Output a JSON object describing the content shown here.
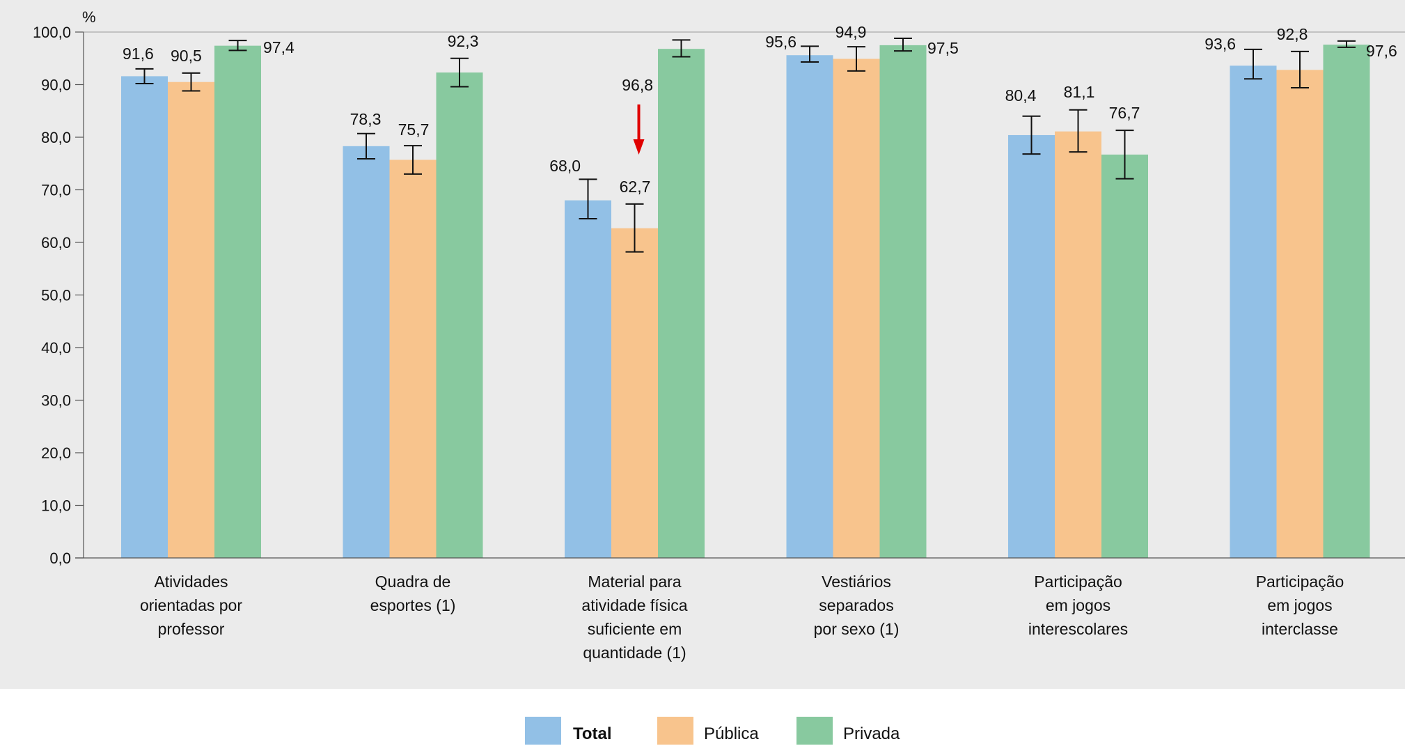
{
  "chart_data": {
    "type": "bar",
    "ylabel": "%",
    "ylim": [
      0,
      100
    ],
    "yticks": [
      "0,0",
      "10,0",
      "20,0",
      "30,0",
      "40,0",
      "50,0",
      "60,0",
      "70,0",
      "80,0",
      "90,0",
      "100,0"
    ],
    "categories": [
      [
        "Atividades",
        "orientadas por",
        "professor"
      ],
      [
        "Quadra de",
        "esportes (1)"
      ],
      [
        "Material para",
        "atividade física",
        "suficiente em",
        "quantidade (1)"
      ],
      [
        "Vestiários",
        "separados",
        "por sexo (1)"
      ],
      [
        "Participação",
        "em jogos",
        "interescolares"
      ],
      [
        "Participação",
        "em jogos",
        "interclasse"
      ]
    ],
    "series": [
      {
        "name": "Total",
        "color": "#92c0e6",
        "values": [
          91.6,
          78.3,
          68.0,
          95.6,
          80.4,
          93.6
        ],
        "labels": [
          "91,6",
          "78,3",
          "68,0",
          "95,6",
          "80,4",
          "93,6"
        ],
        "ci_low": [
          90.2,
          75.9,
          64.5,
          94.3,
          76.8,
          91.1
        ],
        "ci_high": [
          93.0,
          80.7,
          72.0,
          97.3,
          84.0,
          96.7
        ]
      },
      {
        "name": "Pública",
        "color": "#f8c48d",
        "values": [
          90.5,
          75.7,
          62.7,
          94.9,
          81.1,
          92.8
        ],
        "labels": [
          "90,5",
          "75,7",
          "62,7",
          "94,9",
          "81,1",
          "92,8"
        ],
        "ci_low": [
          88.8,
          73.0,
          58.2,
          92.6,
          77.2,
          89.4
        ],
        "ci_high": [
          92.2,
          78.4,
          67.3,
          97.2,
          85.2,
          96.3
        ]
      },
      {
        "name": "Privada",
        "color": "#88c99f",
        "values": [
          97.4,
          92.3,
          96.8,
          97.5,
          76.7,
          97.6
        ],
        "labels": [
          "97,4",
          "92,3",
          "96,8",
          "97,5",
          "76,7",
          "97,6"
        ],
        "ci_low": [
          96.5,
          89.6,
          95.3,
          96.4,
          72.1,
          97.1
        ],
        "ci_high": [
          98.4,
          95.0,
          98.5,
          98.8,
          81.3,
          98.3
        ]
      }
    ],
    "legend": {
      "position": "bottom-center",
      "bold_first": true
    },
    "annotation": {
      "type": "arrow",
      "color": "#e00000",
      "category_index": 2,
      "series_index": 1
    }
  }
}
